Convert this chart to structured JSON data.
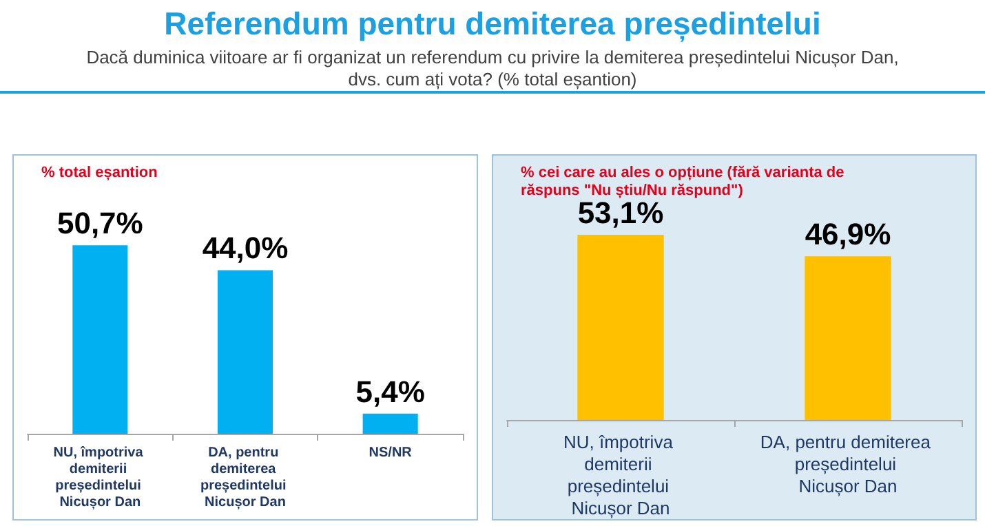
{
  "chart_data": [
    {
      "type": "bar",
      "title": "Referendum pentru demiterea președintelui",
      "subtitle": "Dacă duminica viitoare ar fi organizat un referendum cu privire la demiterea președintelui Nicușor Dan, dvs. cum ați vota? (% total eșantion)",
      "annotations": [
        "% total eșantion"
      ],
      "categories": [
        "NU, împotriva demiterii președintelui Nicușor Dan",
        "DA, pentru demiterea președintelui Nicușor Dan",
        "NS/NR"
      ],
      "values": [
        50.7,
        44.0,
        5.4
      ],
      "value_labels": [
        "50,7%",
        "44,0%",
        "5,4%"
      ],
      "color": "#00b0f0"
    },
    {
      "type": "bar",
      "annotations": [
        "% cei care au ales o opțiune (fără varianta de răspuns \"Nu știu/Nu răspund\")"
      ],
      "categories": [
        "NU, împotriva demiterii președintelui Nicușor Dan",
        "DA, pentru demiterea președintelui Nicușor Dan"
      ],
      "values": [
        53.1,
        46.9
      ],
      "value_labels": [
        "53,1%",
        "46,9%"
      ],
      "color": "#ffc000"
    }
  ]
}
